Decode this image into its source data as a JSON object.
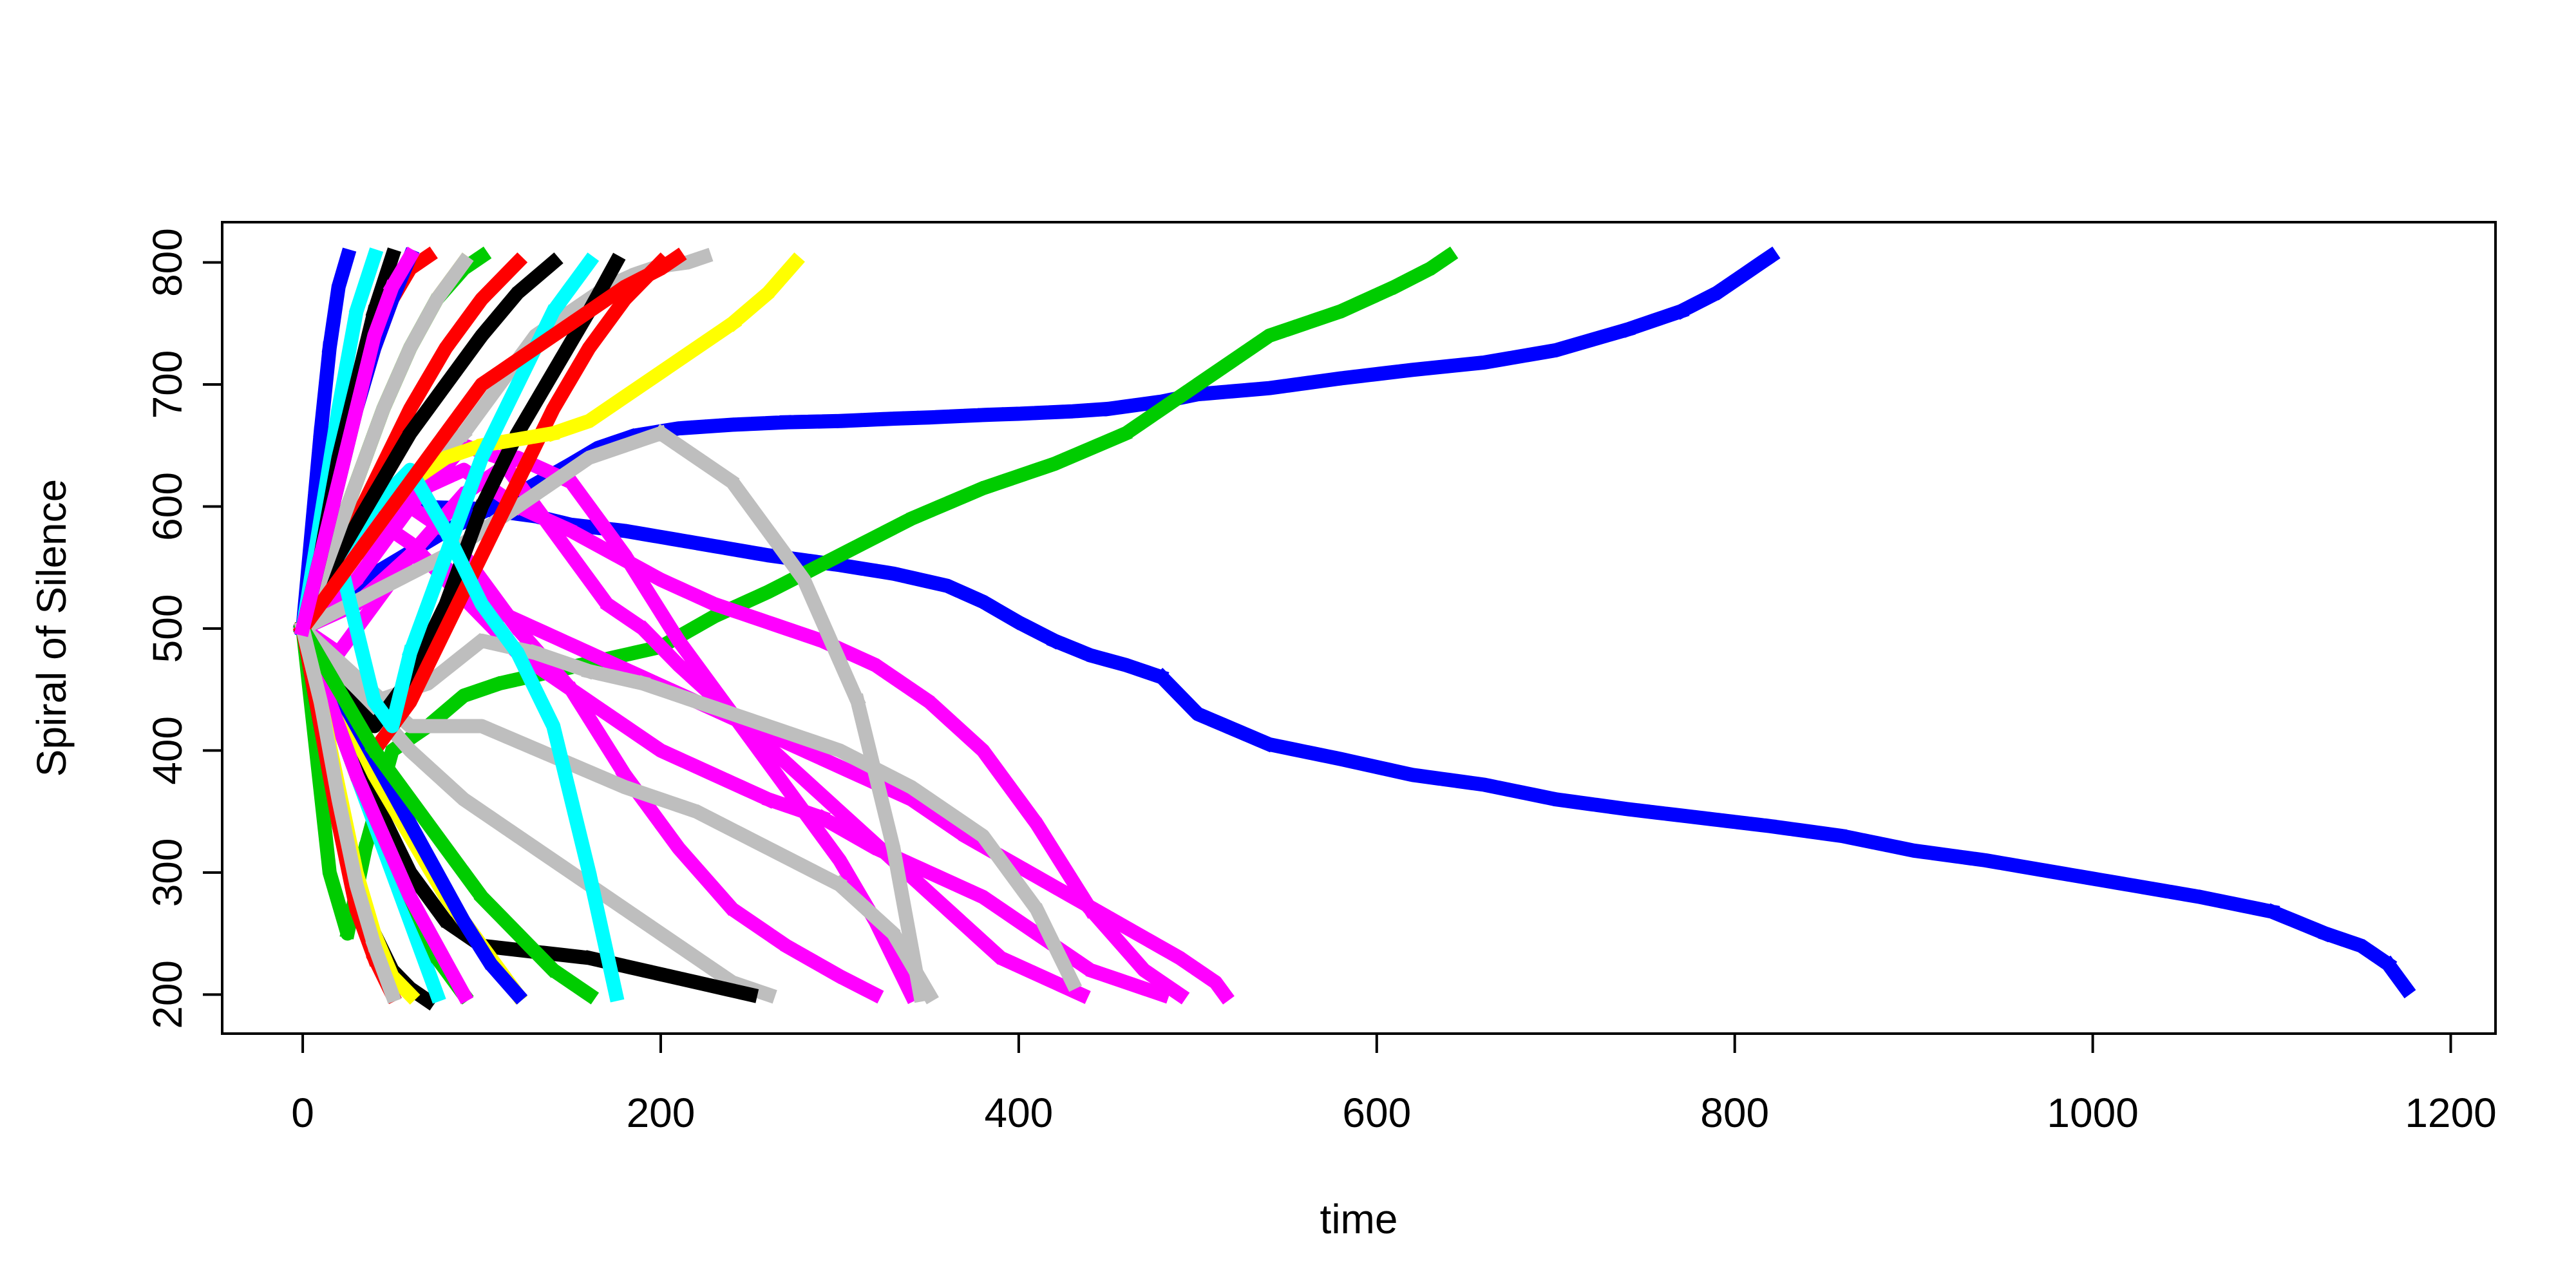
{
  "chart_data": {
    "type": "line",
    "title": "",
    "xlabel": "time",
    "ylabel": "Spiral of Silence",
    "xlim": [
      -45,
      1225
    ],
    "ylim": [
      168,
      833
    ],
    "xticks": [
      0,
      200,
      400,
      600,
      800,
      1000,
      1200
    ],
    "yticks": [
      200,
      300,
      400,
      500,
      600,
      700,
      800
    ],
    "grid": false,
    "legend": "none",
    "series": [
      {
        "color": "#0000FF",
        "x": [
          0,
          40,
          80,
          120,
          150,
          165,
          185,
          210,
          240,
          270,
          300,
          330,
          350,
          380,
          400,
          430,
          450,
          480,
          500,
          540,
          580,
          620,
          660,
          700,
          740,
          770,
          790,
          805,
          815,
          820
        ],
        "y": [
          500,
          545,
          580,
          610,
          635,
          648,
          658,
          664,
          667,
          669,
          670,
          672,
          673,
          675,
          676,
          678,
          680,
          686,
          692,
          697,
          705,
          712,
          718,
          728,
          745,
          760,
          775,
          790,
          800,
          805
        ]
      },
      {
        "color": "#0000FF",
        "x": [
          0,
          20,
          40,
          60,
          100,
          130,
          150,
          180,
          220,
          260,
          300,
          330,
          360,
          380,
          400,
          420,
          440,
          460,
          480,
          500,
          540,
          580,
          620,
          660,
          700,
          740,
          780,
          820,
          860,
          900,
          940,
          980,
          1020,
          1060,
          1100,
          1130,
          1150,
          1165,
          1175
        ],
        "y": [
          500,
          560,
          590,
          600,
          598,
          592,
          585,
          580,
          570,
          560,
          552,
          545,
          535,
          522,
          505,
          490,
          478,
          470,
          460,
          430,
          405,
          393,
          380,
          372,
          360,
          352,
          345,
          338,
          330,
          318,
          310,
          300,
          290,
          280,
          268,
          250,
          240,
          225,
          205
        ]
      },
      {
        "color": "#00CC00",
        "x": [
          0,
          15,
          25,
          35,
          50,
          70,
          90,
          110,
          140,
          170,
          200,
          230,
          260,
          300,
          340,
          380,
          420,
          460,
          500,
          540,
          580,
          610,
          630,
          640
        ],
        "y": [
          500,
          300,
          250,
          320,
          400,
          420,
          445,
          455,
          465,
          475,
          485,
          510,
          530,
          560,
          590,
          615,
          635,
          660,
          700,
          740,
          760,
          780,
          795,
          805
        ]
      },
      {
        "color": "#FF00FF",
        "x": [
          0,
          20,
          40,
          60,
          80,
          100,
          130,
          160,
          190,
          220,
          250,
          280,
          310,
          340,
          370,
          400,
          430,
          460,
          490,
          510,
          515
        ],
        "y": [
          500,
          480,
          520,
          560,
          550,
          520,
          500,
          480,
          460,
          440,
          420,
          400,
          380,
          360,
          330,
          305,
          280,
          255,
          230,
          210,
          200
        ]
      },
      {
        "color": "#FF00FF",
        "x": [
          0,
          20,
          40,
          60,
          80,
          100,
          120,
          140,
          160,
          180,
          200,
          230,
          260,
          290,
          320,
          350,
          380,
          410,
          440,
          470,
          480
        ],
        "y": [
          500,
          560,
          590,
          570,
          540,
          510,
          480,
          460,
          440,
          420,
          400,
          380,
          360,
          345,
          320,
          300,
          280,
          250,
          220,
          205,
          200
        ]
      },
      {
        "color": "#FF00FF",
        "x": [
          0,
          30,
          60,
          90,
          120,
          150,
          175,
          200,
          230,
          260,
          290,
          320,
          350,
          380,
          410,
          440,
          470,
          490
        ],
        "y": [
          500,
          560,
          610,
          630,
          600,
          580,
          560,
          540,
          520,
          505,
          490,
          470,
          440,
          400,
          340,
          270,
          220,
          200
        ]
      },
      {
        "color": "#FF00FF",
        "x": [
          0,
          30,
          60,
          90,
          110,
          130,
          150,
          170,
          190,
          210,
          240,
          270,
          300,
          330,
          360,
          390,
          420,
          435
        ],
        "y": [
          500,
          540,
          600,
          650,
          640,
          600,
          560,
          520,
          500,
          470,
          430,
          390,
          350,
          310,
          270,
          230,
          210,
          200
        ]
      },
      {
        "color": "#FF00FF",
        "x": [
          0,
          30,
          60,
          80,
          100,
          120,
          150,
          180,
          210,
          240,
          270,
          300,
          320
        ],
        "y": [
          500,
          560,
          600,
          580,
          540,
          500,
          450,
          380,
          320,
          270,
          240,
          215,
          200
        ]
      },
      {
        "color": "#FF00FF",
        "x": [
          0,
          30,
          60,
          90,
          120,
          150,
          180,
          210,
          240,
          270,
          300,
          320,
          340
        ],
        "y": [
          500,
          520,
          560,
          610,
          640,
          620,
          560,
          490,
          430,
          370,
          310,
          260,
          200
        ]
      },
      {
        "color": "#BEBEBE",
        "x": [
          0,
          20,
          40,
          70,
          100,
          130,
          160,
          190,
          220,
          260,
          300,
          340,
          380,
          410,
          430
        ],
        "y": [
          500,
          470,
          440,
          455,
          490,
          480,
          465,
          455,
          440,
          420,
          400,
          370,
          330,
          270,
          210
        ]
      },
      {
        "color": "#BEBEBE",
        "x": [
          0,
          30,
          60,
          100,
          140,
          180,
          220,
          260,
          300,
          330,
          350
        ],
        "y": [
          500,
          460,
          420,
          420,
          395,
          370,
          350,
          320,
          290,
          250,
          200
        ]
      },
      {
        "color": "#BEBEBE",
        "x": [
          0,
          30,
          60,
          90,
          120,
          150,
          180,
          210,
          240,
          260
        ],
        "y": [
          500,
          450,
          400,
          360,
          330,
          300,
          270,
          240,
          210,
          200
        ]
      },
      {
        "color": "#BEBEBE",
        "x": [
          0,
          30,
          60,
          90,
          110,
          130,
          150,
          170,
          185,
          195,
          205,
          215,
          225
        ],
        "y": [
          500,
          560,
          620,
          660,
          700,
          740,
          760,
          780,
          790,
          795,
          798,
          800,
          805
        ]
      },
      {
        "color": "#BEBEBE",
        "x": [
          0,
          40,
          80,
          120,
          160,
          200,
          240,
          280,
          310,
          330,
          345
        ],
        "y": [
          500,
          530,
          560,
          600,
          640,
          660,
          620,
          540,
          440,
          320,
          200
        ]
      },
      {
        "color": "#000000",
        "x": [
          0,
          20,
          40,
          60,
          80,
          100,
          130,
          160,
          190,
          220,
          250
        ],
        "y": [
          500,
          420,
          360,
          300,
          260,
          240,
          235,
          230,
          220,
          210,
          200
        ]
      },
      {
        "color": "#000000",
        "x": [
          0,
          20,
          40,
          60,
          80,
          100,
          120,
          140,
          160,
          175
        ],
        "y": [
          500,
          450,
          420,
          460,
          520,
          600,
          660,
          710,
          760,
          800
        ]
      },
      {
        "color": "#000000",
        "x": [
          0,
          10,
          20,
          30,
          40,
          50,
          60,
          70
        ],
        "y": [
          500,
          420,
          350,
          290,
          250,
          220,
          205,
          195
        ]
      },
      {
        "color": "#FF0000",
        "x": [
          0,
          20,
          40,
          60,
          80,
          100,
          120,
          140,
          160,
          180,
          200
        ],
        "y": [
          500,
          440,
          400,
          440,
          500,
          560,
          620,
          680,
          730,
          770,
          800
        ]
      },
      {
        "color": "#FF0000",
        "x": [
          0,
          10,
          20,
          30,
          40,
          50
        ],
        "y": [
          500,
          420,
          340,
          270,
          230,
          200
        ]
      },
      {
        "color": "#FF0000",
        "x": [
          0,
          20,
          40,
          60,
          80,
          100,
          120
        ],
        "y": [
          500,
          560,
          620,
          680,
          730,
          770,
          800
        ]
      },
      {
        "color": "#FFFF00",
        "x": [
          0,
          20,
          40,
          60,
          80,
          100,
          120,
          140,
          160,
          180,
          200,
          220,
          240,
          260,
          275
        ],
        "y": [
          500,
          560,
          600,
          620,
          640,
          650,
          655,
          660,
          670,
          690,
          710,
          730,
          750,
          775,
          800
        ]
      },
      {
        "color": "#FFFF00",
        "x": [
          0,
          20,
          40,
          60,
          80,
          100,
          120
        ],
        "y": [
          500,
          440,
          380,
          330,
          280,
          240,
          200
        ]
      },
      {
        "color": "#FFFF00",
        "x": [
          0,
          15,
          30,
          45,
          60,
          75,
          90
        ],
        "y": [
          500,
          560,
          620,
          680,
          730,
          770,
          800
        ]
      },
      {
        "color": "#00FFFF",
        "x": [
          0,
          20,
          40,
          60,
          80,
          100,
          120,
          140,
          160,
          175
        ],
        "y": [
          500,
          560,
          600,
          630,
          580,
          520,
          480,
          420,
          300,
          200
        ]
      },
      {
        "color": "#00FFFF",
        "x": [
          0,
          20,
          40,
          50,
          60,
          80,
          100,
          120,
          140,
          160
        ],
        "y": [
          500,
          560,
          440,
          420,
          480,
          560,
          640,
          700,
          760,
          800
        ]
      },
      {
        "color": "#00FFFF",
        "x": [
          0,
          15,
          30,
          45,
          60,
          75
        ],
        "y": [
          500,
          440,
          380,
          320,
          260,
          200
        ]
      },
      {
        "color": "#00CC00",
        "x": [
          0,
          15,
          30,
          45,
          60,
          75,
          90,
          100
        ],
        "y": [
          500,
          560,
          620,
          680,
          730,
          770,
          795,
          805
        ]
      },
      {
        "color": "#00CC00",
        "x": [
          0,
          15,
          30,
          45,
          60,
          75,
          90
        ],
        "y": [
          500,
          440,
          380,
          330,
          280,
          230,
          200
        ]
      },
      {
        "color": "#0000FF",
        "x": [
          0,
          5,
          10,
          15,
          20,
          25
        ],
        "y": [
          500,
          580,
          660,
          730,
          780,
          805
        ]
      },
      {
        "color": "#0000FF",
        "x": [
          0,
          15,
          30,
          45,
          60,
          75,
          90,
          105,
          120
        ],
        "y": [
          500,
          460,
          420,
          380,
          340,
          300,
          260,
          225,
          200
        ]
      },
      {
        "color": "#000000",
        "x": [
          0,
          20,
          40,
          60,
          80,
          100,
          120,
          140
        ],
        "y": [
          500,
          560,
          610,
          660,
          700,
          740,
          775,
          800
        ]
      },
      {
        "color": "#FF00FF",
        "x": [
          0,
          15,
          30,
          45,
          60,
          75,
          90
        ],
        "y": [
          500,
          440,
          380,
          330,
          280,
          240,
          200
        ]
      },
      {
        "color": "#BEBEBE",
        "x": [
          0,
          15,
          30,
          45,
          60,
          75,
          90
        ],
        "y": [
          500,
          560,
          620,
          680,
          730,
          770,
          800
        ]
      },
      {
        "color": "#00FFFF",
        "x": [
          0,
          10,
          20,
          30,
          40
        ],
        "y": [
          500,
          590,
          680,
          760,
          805
        ]
      },
      {
        "color": "#FFFF00",
        "x": [
          0,
          10,
          20,
          30,
          40,
          50,
          60
        ],
        "y": [
          500,
          440,
          370,
          300,
          250,
          215,
          200
        ]
      },
      {
        "color": "#FF0000",
        "x": [
          0,
          10,
          20,
          30,
          40,
          50,
          60,
          70
        ],
        "y": [
          500,
          560,
          620,
          680,
          730,
          770,
          795,
          805
        ]
      },
      {
        "color": "#00CC00",
        "x": [
          0,
          20,
          40,
          60,
          80,
          100,
          120,
          140,
          160
        ],
        "y": [
          500,
          450,
          400,
          360,
          320,
          280,
          250,
          220,
          200
        ]
      },
      {
        "color": "#0000FF",
        "x": [
          0,
          10,
          20,
          30,
          40,
          50,
          60
        ],
        "y": [
          500,
          560,
          620,
          680,
          730,
          770,
          805
        ]
      },
      {
        "color": "#000000",
        "x": [
          0,
          10,
          20,
          30,
          40,
          50
        ],
        "y": [
          500,
          560,
          640,
          700,
          760,
          805
        ]
      },
      {
        "color": "#FF0000",
        "x": [
          0,
          20,
          40,
          60,
          80,
          100,
          120,
          140,
          160,
          180,
          200,
          210
        ],
        "y": [
          500,
          540,
          580,
          620,
          660,
          700,
          720,
          740,
          760,
          780,
          795,
          805
        ]
      },
      {
        "color": "#BEBEBE",
        "x": [
          0,
          10,
          20,
          30,
          40,
          50
        ],
        "y": [
          500,
          440,
          360,
          290,
          240,
          200
        ]
      },
      {
        "color": "#FF00FF",
        "x": [
          0,
          10,
          20,
          30,
          40,
          50,
          60
        ],
        "y": [
          500,
          560,
          620,
          680,
          740,
          780,
          805
        ]
      }
    ]
  }
}
